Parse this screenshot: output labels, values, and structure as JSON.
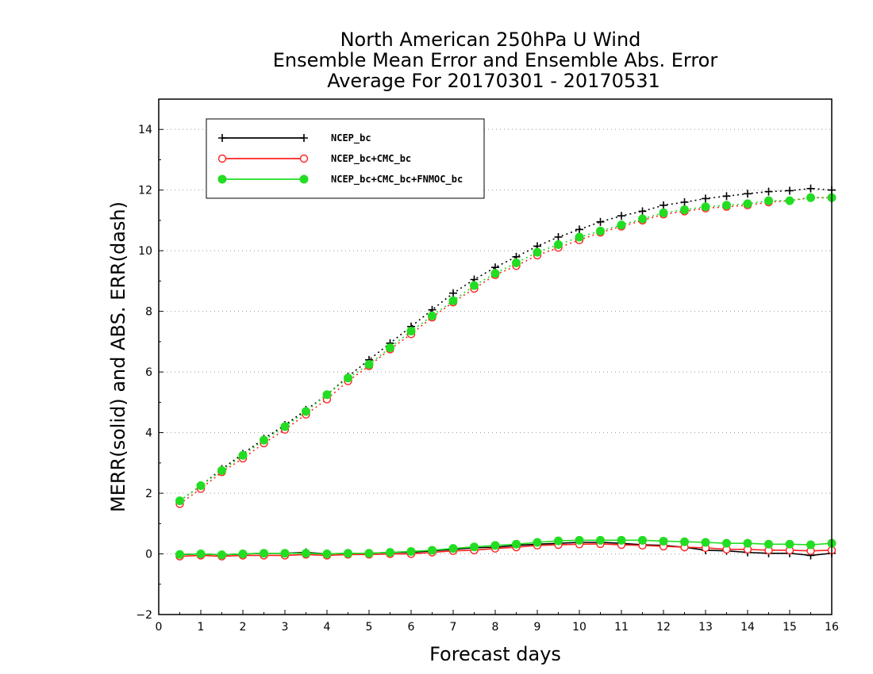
{
  "chart_data": {
    "type": "line",
    "title": [
      "North American 250hPa U Wind",
      "Ensemble Mean Error and Ensemble Abs. Error",
      "Average For 20170301 - 20170531"
    ],
    "xlabel": "Forecast days",
    "ylabel": "MERR(solid) and ABS. ERR(dash)",
    "xlim": [
      0,
      16
    ],
    "ylim": [
      -2,
      15
    ],
    "xticks": [
      0,
      1,
      2,
      3,
      4,
      5,
      6,
      7,
      8,
      9,
      10,
      11,
      12,
      13,
      14,
      15,
      16
    ],
    "yticks": [
      -2,
      0,
      2,
      4,
      6,
      8,
      10,
      12,
      14
    ],
    "grid": "horizontal dotted",
    "legend_position": "top-left",
    "x": [
      0.5,
      1,
      1.5,
      2,
      2.5,
      3,
      3.5,
      4,
      4.5,
      5,
      5.5,
      6,
      6.5,
      7,
      7.5,
      8,
      8.5,
      9,
      9.5,
      10,
      10.5,
      11,
      11.5,
      12,
      12.5,
      13,
      13.5,
      14,
      14.5,
      15,
      15.5,
      16
    ],
    "series": [
      {
        "name": "NCEP_bc",
        "color": "#000000",
        "marker": "plus",
        "abs_err": [
          1.75,
          2.25,
          2.8,
          3.3,
          3.8,
          4.25,
          4.75,
          5.25,
          5.85,
          6.4,
          6.95,
          7.5,
          8.05,
          8.6,
          9.05,
          9.45,
          9.8,
          10.15,
          10.45,
          10.7,
          10.95,
          11.15,
          11.3,
          11.5,
          11.6,
          11.72,
          11.8,
          11.88,
          11.95,
          11.98,
          12.05,
          12.0
        ],
        "mean_err": [
          -0.02,
          0.0,
          -0.03,
          0.0,
          0.02,
          0.02,
          0.05,
          0.0,
          0.02,
          0.02,
          0.05,
          0.05,
          0.1,
          0.15,
          0.2,
          0.22,
          0.28,
          0.32,
          0.35,
          0.38,
          0.38,
          0.35,
          0.3,
          0.28,
          0.22,
          0.12,
          0.1,
          0.05,
          0.02,
          0.02,
          -0.05,
          0.02
        ]
      },
      {
        "name": "NCEP_bc+CMC_bc",
        "color": "#ff2020",
        "marker": "open-circle",
        "abs_err": [
          1.65,
          2.15,
          2.7,
          3.15,
          3.65,
          4.1,
          4.6,
          5.1,
          5.7,
          6.2,
          6.75,
          7.25,
          7.8,
          8.3,
          8.75,
          9.2,
          9.5,
          9.85,
          10.1,
          10.35,
          10.6,
          10.8,
          11.0,
          11.2,
          11.3,
          11.4,
          11.45,
          11.5,
          11.6,
          11.65,
          11.75,
          11.75
        ],
        "mean_err": [
          -0.08,
          -0.05,
          -0.08,
          -0.05,
          -0.05,
          -0.05,
          -0.02,
          -0.05,
          -0.02,
          -0.02,
          0.0,
          0.0,
          0.05,
          0.1,
          0.12,
          0.18,
          0.22,
          0.28,
          0.3,
          0.32,
          0.33,
          0.3,
          0.28,
          0.25,
          0.22,
          0.2,
          0.15,
          0.15,
          0.12,
          0.12,
          0.1,
          0.12
        ]
      },
      {
        "name": "NCEP_bc+CMC_bc+FNMOC_bc",
        "color": "#22dd22",
        "marker": "filled-circle",
        "abs_err": [
          1.75,
          2.25,
          2.75,
          3.25,
          3.75,
          4.2,
          4.7,
          5.25,
          5.8,
          6.25,
          6.8,
          7.35,
          7.85,
          8.35,
          8.85,
          9.25,
          9.6,
          9.95,
          10.2,
          10.45,
          10.65,
          10.85,
          11.05,
          11.25,
          11.35,
          11.45,
          11.5,
          11.55,
          11.65,
          11.65,
          11.75,
          11.75
        ],
        "mean_err": [
          -0.02,
          0.0,
          -0.03,
          0.0,
          0.02,
          0.02,
          0.02,
          0.0,
          0.02,
          0.02,
          0.05,
          0.08,
          0.12,
          0.18,
          0.23,
          0.28,
          0.32,
          0.38,
          0.43,
          0.45,
          0.45,
          0.45,
          0.45,
          0.42,
          0.4,
          0.38,
          0.35,
          0.35,
          0.32,
          0.32,
          0.3,
          0.35
        ]
      }
    ]
  }
}
